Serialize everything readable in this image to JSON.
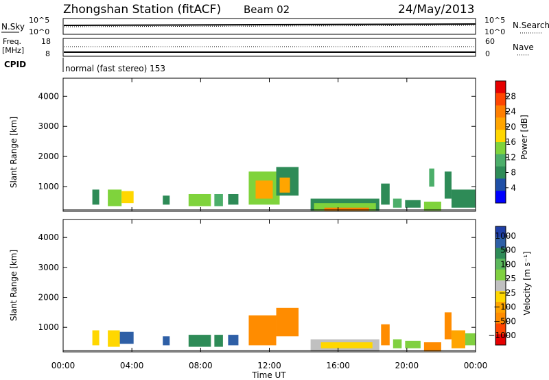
{
  "header": {
    "station": "Zhongshan Station (fitACF)",
    "beam": "Beam 02",
    "date": "24/May/2013"
  },
  "status_panels": {
    "nsky_label": "N.Sky",
    "nsky_ticks": [
      "10^5",
      "10^0"
    ],
    "nsearch_label": "N.Search",
    "nsearch_ticks": [
      "10^5",
      "10^0"
    ],
    "freq_label_1": "Freq.",
    "freq_label_2": "[MHz]",
    "freq_ticks": [
      "18",
      "8"
    ],
    "nave_label": "Nave",
    "nave_ticks": [
      "60",
      "0"
    ],
    "cpid_label": "CPID",
    "cpid_text": "normal (fast stereo) 153"
  },
  "chart_data": [
    {
      "type": "heatmap",
      "name": "power",
      "ylabel": "Slant Range [km]",
      "xlabel": "",
      "ylim": [
        180,
        4600
      ],
      "yticks": [
        "1000",
        "2000",
        "3000",
        "4000"
      ],
      "colorbar_label": "Power [dB]",
      "colorbar_ticks": [
        "4",
        "8",
        "12",
        "16",
        "20",
        "24",
        "28"
      ],
      "colorbar_colors": [
        "#0000ff",
        "#1f4fa6",
        "#2e8b57",
        "#4cae6a",
        "#7fd33c",
        "#ffd700",
        "#ffa500",
        "#ff7f00",
        "#ff4500",
        "#e60000"
      ],
      "blocks": [
        {
          "t": [
            1.7,
            2.1
          ],
          "r": [
            400,
            900
          ],
          "v": 8
        },
        {
          "t": [
            2.6,
            3.4
          ],
          "r": [
            350,
            900
          ],
          "v": 14
        },
        {
          "t": [
            3.4,
            4.1
          ],
          "r": [
            450,
            850
          ],
          "v": 18
        },
        {
          "t": [
            5.8,
            6.2
          ],
          "r": [
            400,
            700
          ],
          "v": 10
        },
        {
          "t": [
            7.3,
            8.6
          ],
          "r": [
            350,
            750
          ],
          "v": 14
        },
        {
          "t": [
            8.8,
            9.3
          ],
          "r": [
            350,
            750
          ],
          "v": 12
        },
        {
          "t": [
            9.6,
            10.2
          ],
          "r": [
            400,
            750
          ],
          "v": 10
        },
        {
          "t": [
            10.8,
            12.6
          ],
          "r": [
            400,
            1500
          ],
          "v": 14
        },
        {
          "t": [
            11.2,
            12.2
          ],
          "r": [
            600,
            1200
          ],
          "v": 20
        },
        {
          "t": [
            12.4,
            13.7
          ],
          "r": [
            700,
            1650
          ],
          "v": 10
        },
        {
          "t": [
            12.6,
            13.2
          ],
          "r": [
            800,
            1300
          ],
          "v": 22
        },
        {
          "t": [
            14.4,
            18.4
          ],
          "r": [
            200,
            600
          ],
          "v": 8
        },
        {
          "t": [
            14.6,
            18.2
          ],
          "r": [
            200,
            450
          ],
          "v": 14
        },
        {
          "t": [
            15.2,
            17.8
          ],
          "r": [
            200,
            300
          ],
          "v": 24
        },
        {
          "t": [
            18.5,
            19.0
          ],
          "r": [
            400,
            1100
          ],
          "v": 8
        },
        {
          "t": [
            19.2,
            19.7
          ],
          "r": [
            300,
            600
          ],
          "v": 12
        },
        {
          "t": [
            19.9,
            20.8
          ],
          "r": [
            300,
            550
          ],
          "v": 10
        },
        {
          "t": [
            21.0,
            22.0
          ],
          "r": [
            200,
            500
          ],
          "v": 16
        },
        {
          "t": [
            21.3,
            21.6
          ],
          "r": [
            1000,
            1600
          ],
          "v": 12
        },
        {
          "t": [
            22.2,
            22.6
          ],
          "r": [
            600,
            1500
          ],
          "v": 8
        },
        {
          "t": [
            22.6,
            24.0
          ],
          "r": [
            300,
            900
          ],
          "v": 10
        }
      ]
    },
    {
      "type": "heatmap",
      "name": "velocity",
      "ylabel": "Slant Range [km]",
      "xlabel": "Time UT",
      "ylim": [
        180,
        4600
      ],
      "yticks": [
        "1000",
        "2000",
        "3000",
        "4000"
      ],
      "xticks": [
        "00:00",
        "04:00",
        "08:00",
        "12:00",
        "16:00",
        "20:00",
        "00:00"
      ],
      "xlim": [
        0,
        24
      ],
      "colorbar_label": "Velocity [m s⁻¹]",
      "colorbar_ticks": [
        "1000",
        "500",
        "100",
        "25",
        "−25",
        "−100",
        "−500",
        "−1000"
      ],
      "colorbar_colors": [
        "#1f3fa6",
        "#2e5fa6",
        "#2e8b57",
        "#5cb85c",
        "#80d040",
        "#c0c0c0",
        "#ffd700",
        "#ffa500",
        "#ff8c00",
        "#ff4500",
        "#e60000"
      ],
      "blocks": [
        {
          "t": [
            1.7,
            2.1
          ],
          "r": [
            400,
            900
          ],
          "v": -100
        },
        {
          "t": [
            2.6,
            3.3
          ],
          "r": [
            350,
            900
          ],
          "v": -100
        },
        {
          "t": [
            3.3,
            4.1
          ],
          "r": [
            450,
            850
          ],
          "v": 600
        },
        {
          "t": [
            5.8,
            6.2
          ],
          "r": [
            400,
            700
          ],
          "v": 600
        },
        {
          "t": [
            7.3,
            8.6
          ],
          "r": [
            350,
            750
          ],
          "v": 300
        },
        {
          "t": [
            8.8,
            9.3
          ],
          "r": [
            350,
            750
          ],
          "v": 300
        },
        {
          "t": [
            9.6,
            10.2
          ],
          "r": [
            400,
            750
          ],
          "v": 800
        },
        {
          "t": [
            10.8,
            12.4
          ],
          "r": [
            400,
            1400
          ],
          "v": -300
        },
        {
          "t": [
            12.4,
            13.7
          ],
          "r": [
            700,
            1650
          ],
          "v": -300
        },
        {
          "t": [
            14.4,
            18.4
          ],
          "r": [
            200,
            600
          ],
          "v": 0
        },
        {
          "t": [
            15.0,
            18.0
          ],
          "r": [
            300,
            500
          ],
          "v": -60
        },
        {
          "t": [
            18.5,
            19.0
          ],
          "r": [
            400,
            1100
          ],
          "v": -300
        },
        {
          "t": [
            19.2,
            19.7
          ],
          "r": [
            300,
            600
          ],
          "v": 60
        },
        {
          "t": [
            19.9,
            20.8
          ],
          "r": [
            300,
            550
          ],
          "v": 60
        },
        {
          "t": [
            21.0,
            22.0
          ],
          "r": [
            200,
            500
          ],
          "v": -300
        },
        {
          "t": [
            22.2,
            22.6
          ],
          "r": [
            600,
            1500
          ],
          "v": -300
        },
        {
          "t": [
            22.6,
            23.4
          ],
          "r": [
            300,
            900
          ],
          "v": -200
        },
        {
          "t": [
            23.4,
            24.0
          ],
          "r": [
            400,
            800
          ],
          "v": 60
        }
      ]
    }
  ]
}
